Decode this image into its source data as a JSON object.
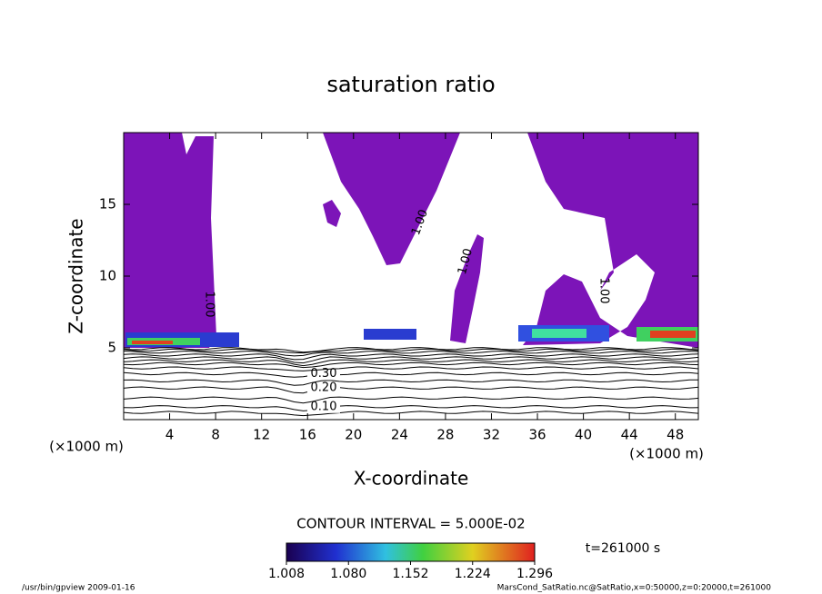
{
  "chart_data": {
    "type": "contour",
    "title": "saturation ratio",
    "xlabel": "X-coordinate",
    "ylabel": "Z-coordinate",
    "x_unit": "(×1000 m)",
    "y_unit": "(×1000 m)",
    "xlim": [
      0,
      50
    ],
    "ylim": [
      0,
      20
    ],
    "xticks": [
      4,
      8,
      12,
      16,
      20,
      24,
      28,
      32,
      36,
      40,
      44,
      48
    ],
    "yticks": [
      5,
      10,
      15
    ],
    "fill_color": "#7c14b8",
    "saturation_contour": {
      "value": 1,
      "label": "1.00"
    },
    "contour_lines": [
      {
        "level": 0.05,
        "z": 0.5
      },
      {
        "level": {
          "value": 0.1,
          "label": "0.10"
        },
        "z": 0.9
      },
      {
        "level": 0.15,
        "z": 1.5
      },
      {
        "level": {
          "value": 0.2,
          "label": "0.20"
        },
        "z": 2.2
      },
      {
        "level": 0.25,
        "z": 2.7
      },
      {
        "level": {
          "value": 0.3,
          "label": "0.30"
        },
        "z": 3.2
      },
      {
        "level": 0.35,
        "z": 3.6
      },
      {
        "level": 0.4,
        "z": 3.9
      },
      {
        "level": 0.45,
        "z": 4.1
      },
      {
        "level": 0.5,
        "z": 4.3
      },
      {
        "level": 0.6,
        "z": 4.5
      },
      {
        "level": 0.7,
        "z": 4.7
      },
      {
        "level": 0.8,
        "z": 4.85
      },
      {
        "level": 0.9,
        "z": 4.95
      }
    ],
    "contour_interval_text": "CONTOUR INTERVAL = 5.000E-02",
    "colorbar_lim": [
      1.008,
      1.296
    ],
    "colorbar_ticks": [
      1.008,
      {
        "value": 1.08,
        "label": "1.080"
      },
      1.152,
      1.224,
      1.296
    ],
    "time_label": "t=261000 s",
    "footer_left": "/usr/bin/gpview   2009-01-16",
    "footer_right": "MarsCond_SatRatio.nc@SatRatio,x=0:50000,z=0:20000,t=261000"
  }
}
